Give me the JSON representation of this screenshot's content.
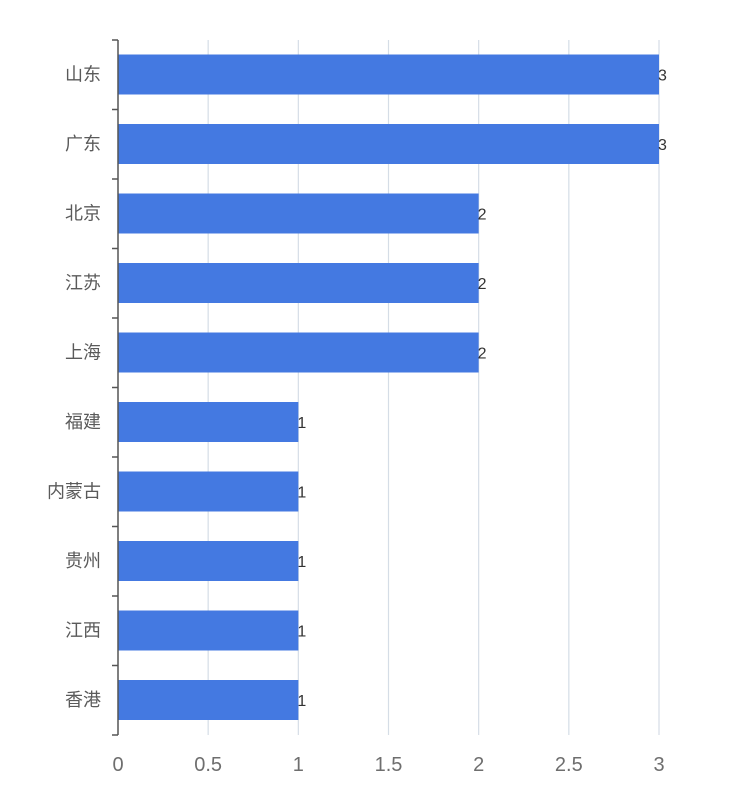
{
  "chart_data": {
    "type": "bar",
    "orientation": "horizontal",
    "title": "",
    "xlabel": "",
    "ylabel": "",
    "categories": [
      "山东",
      "广东",
      "北京",
      "江苏",
      "上海",
      "福建",
      "内蒙古",
      "贵州",
      "江西",
      "香港"
    ],
    "values": [
      3,
      3,
      2,
      2,
      2,
      1,
      1,
      1,
      1,
      1
    ],
    "xlim": [
      0,
      3
    ],
    "x_ticks": [
      0,
      0.5,
      1,
      1.5,
      2,
      2.5,
      3
    ],
    "x_tick_labels": [
      "0",
      "0.5",
      "1",
      "1.5",
      "2",
      "2.5",
      "3"
    ],
    "grid": "vertical",
    "legend": "none",
    "data_labels": true,
    "bar_color": "#4479e1",
    "grid_color": "#d5dde6",
    "axis_color": "#555555"
  }
}
